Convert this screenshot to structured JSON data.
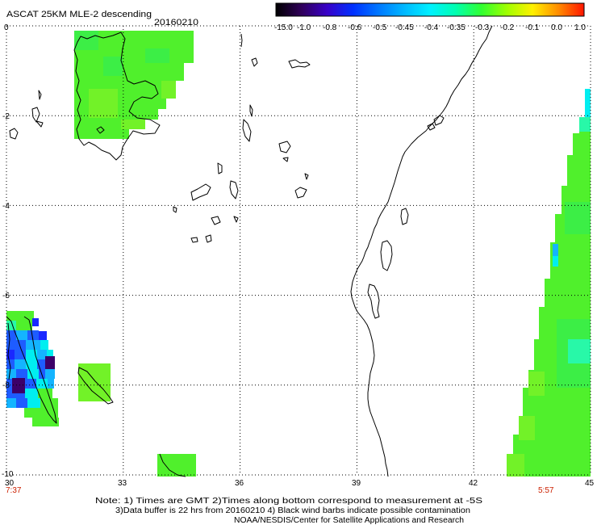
{
  "header": {
    "title": "ASCAT 25KM MLE-2 descending",
    "date": "20160210"
  },
  "colorbar": {
    "labels": [
      "-15.0",
      "-1.0",
      "-0.8",
      "-0.6",
      "-0.5",
      "-0.45",
      "-0.4",
      "-0.35",
      "-0.3",
      "-0.2",
      "-0.1",
      "0.0",
      "1.0"
    ],
    "colors": [
      "#000000",
      "#30005a",
      "#3800c8",
      "#0030ff",
      "#0078ff",
      "#00b8ff",
      "#00f0ff",
      "#00ffb0",
      "#30ff30",
      "#a0ff00",
      "#fff000",
      "#ff8c00",
      "#ff1400"
    ]
  },
  "axes": {
    "x_ticks": [
      "30",
      "33",
      "36",
      "39",
      "42",
      "45"
    ],
    "y_ticks": [
      "0",
      "-2",
      "-4",
      "-6",
      "-8",
      "-10"
    ],
    "x_range": [
      30,
      45
    ],
    "y_range": [
      -10,
      0
    ]
  },
  "times": {
    "left": "7:37",
    "right": "5:57",
    "color": "#cc2000"
  },
  "notes": [
    "Note: 1) Times are GMT 2)Times along bottom correspond to measurement at -5S",
    "3)Data buffer is 22 hrs from 20160210 4) Black wind barbs indicate possible contamination",
    "NOAA/NESDIS/Center for Satellite Applications and Research"
  ]
}
